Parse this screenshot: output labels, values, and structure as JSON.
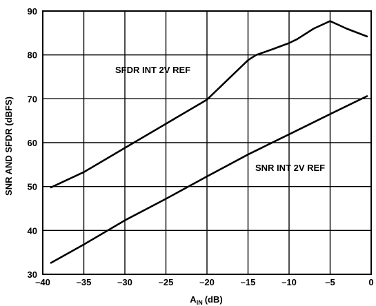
{
  "chart_data": {
    "type": "line",
    "xlabel": "A",
    "xlabel_sub": "IN",
    "xlabel_unit": "(dB)",
    "ylabel": "SNR AND SFDR (dBFS)",
    "xlim": [
      -40,
      0
    ],
    "ylim": [
      30,
      90
    ],
    "x_ticks": [
      -40,
      -35,
      -30,
      -25,
      -20,
      -15,
      -10,
      -5,
      0
    ],
    "y_ticks": [
      30,
      40,
      50,
      60,
      70,
      80,
      90
    ],
    "x_tick_labels": [
      "–40",
      "–35",
      "–30",
      "–25",
      "–20",
      "–15",
      "–10",
      "–5",
      "0"
    ],
    "y_tick_labels": [
      "30",
      "40",
      "50",
      "60",
      "70",
      "80",
      "90"
    ],
    "grid": true,
    "series": [
      {
        "name": "SFDR INT 2V REF",
        "x": [
          -39,
          -35,
          -30,
          -25,
          -20,
          -15,
          -14,
          -12,
          -10,
          -9,
          -7,
          -5,
          -3,
          -0.5
        ],
        "y": [
          49.8,
          53.3,
          58.8,
          64.3,
          69.8,
          78.8,
          80.0,
          81.3,
          82.7,
          83.6,
          86.0,
          87.7,
          86.0,
          84.2
        ]
      },
      {
        "name": "SNR INT 2V REF",
        "x": [
          -39,
          -35,
          -30,
          -25,
          -20,
          -15,
          -10,
          -5,
          -0.5
        ],
        "y": [
          32.6,
          36.8,
          42.3,
          47.2,
          52.3,
          57.3,
          61.9,
          66.5,
          70.6
        ]
      }
    ]
  }
}
